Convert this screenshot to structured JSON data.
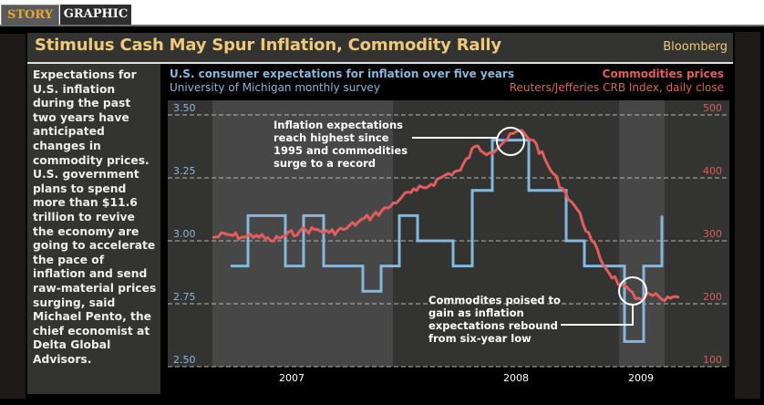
{
  "tabs": [
    {
      "label": "STORY",
      "active": false
    },
    {
      "label": "GRAPHIC",
      "active": true
    }
  ],
  "header": {
    "title": "Stimulus Cash May Spur Inflation, Commodity Rally",
    "brand": "Bloomberg"
  },
  "sidebar": {
    "text": "Expectations for U.S. inflation during the past two years have anticipated changes in commodity prices. U.S. government plans to spend more than $11.6 trillion to revive the economy are going to accelerate the pace of inflation and send raw-material prices surging, said Michael Pento, the chief economist at Delta Global Advisors."
  },
  "colors": {
    "inflation": "#86b7dd",
    "commodities": "#e45d5d",
    "title": "#f0c879",
    "story_tab": "#e3a92b"
  },
  "chart_data": {
    "type": "line",
    "x_labels": [
      "2007",
      "2008",
      "2009"
    ],
    "x_range": [
      "2006-09",
      "2009-03"
    ],
    "grid": true,
    "series": [
      {
        "name": "U.S. consumer expectations for inflation over five years",
        "subtitle": "University of Michigan monthly survey",
        "axis": "left",
        "style": "step",
        "points": [
          [
            "2006-10",
            2.9
          ],
          [
            "2006-11",
            3.1
          ],
          [
            "2007-01",
            2.9
          ],
          [
            "2007-02",
            3.1
          ],
          [
            "2007-03",
            2.9
          ],
          [
            "2007-05",
            2.8
          ],
          [
            "2007-06",
            2.9
          ],
          [
            "2007-07",
            3.1
          ],
          [
            "2007-08",
            3.0
          ],
          [
            "2007-10",
            2.9
          ],
          [
            "2007-11",
            3.2
          ],
          [
            "2007-12",
            3.4
          ],
          [
            "2008-02",
            3.2
          ],
          [
            "2008-04",
            3.0
          ],
          [
            "2008-05",
            2.9
          ],
          [
            "2008-07",
            2.6
          ],
          [
            "2008-08",
            2.9
          ],
          [
            "2008-09",
            3.1
          ]
        ]
      },
      {
        "name": "Commodities prices",
        "subtitle": "Reuters/Jefferies CRB Index, daily close",
        "axis": "right",
        "style": "line",
        "points": [
          [
            "2006-09",
            305
          ],
          [
            "2006-10",
            310
          ],
          [
            "2006-11",
            306
          ],
          [
            "2006-12",
            309
          ],
          [
            "2007-01",
            300
          ],
          [
            "2007-02",
            308
          ],
          [
            "2007-03",
            316
          ],
          [
            "2007-04",
            318
          ],
          [
            "2007-05",
            313
          ],
          [
            "2007-06",
            318
          ],
          [
            "2007-07",
            330
          ],
          [
            "2007-08",
            340
          ],
          [
            "2007-09",
            352
          ],
          [
            "2007-10",
            370
          ],
          [
            "2007-11",
            380
          ],
          [
            "2007-12",
            390
          ],
          [
            "2008-01",
            405
          ],
          [
            "2008-02",
            412
          ],
          [
            "2008-03",
            450
          ],
          [
            "2008-04",
            440
          ],
          [
            "2008-05",
            458
          ],
          [
            "2008-06",
            475
          ],
          [
            "2008-07",
            460
          ],
          [
            "2008-08",
            420
          ],
          [
            "2008-09",
            383
          ],
          [
            "2008-10",
            350
          ],
          [
            "2008-11",
            300
          ],
          [
            "2008-12",
            255
          ],
          [
            "2009-01",
            230
          ],
          [
            "2009-02",
            208
          ],
          [
            "2009-03",
            215
          ],
          [
            "2009-04",
            205
          ],
          [
            "2009-05",
            210
          ]
        ]
      }
    ],
    "left_axis": {
      "ticks": [
        "3.50",
        "3.25",
        "3.00",
        "2.75",
        "2.50"
      ],
      "range": [
        2.5,
        3.5
      ]
    },
    "right_axis": {
      "ticks": [
        "500",
        "400",
        "300",
        "200",
        "100"
      ],
      "range": [
        100,
        500
      ]
    },
    "annotations": [
      {
        "text": "Inflation expectations reach highest since 1995 and commodities surge to a record",
        "target": "2007-12 peak"
      },
      {
        "text": "Commodites poised to gain as inflation expectations rebound from six-year low",
        "target": "2008-07 low"
      }
    ]
  }
}
